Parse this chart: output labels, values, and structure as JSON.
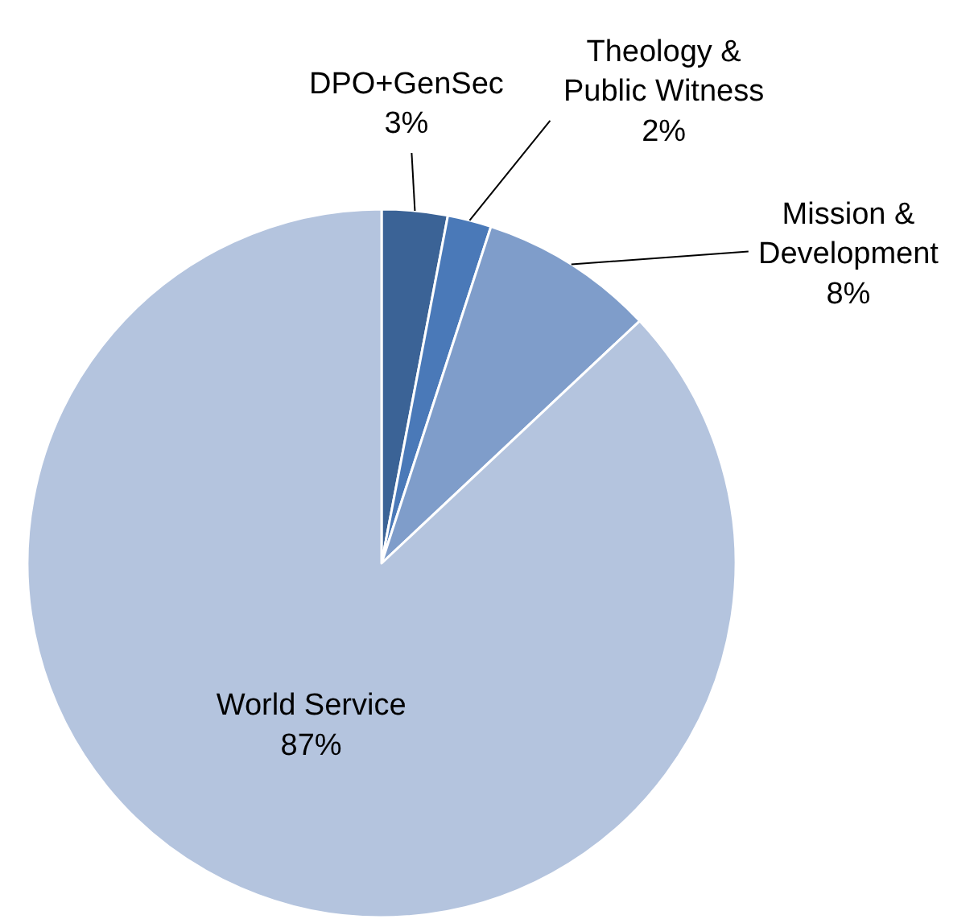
{
  "chart_data": {
    "type": "pie",
    "categories": [
      "DPO+GenSec",
      "Theology &\nPublic Witness",
      "Mission &\nDevelopment",
      "World Service"
    ],
    "values": [
      3,
      2,
      8,
      87
    ],
    "value_labels": [
      "3%",
      "2%",
      "8%",
      "87%"
    ],
    "colors": [
      "#3b6396",
      "#4a79b8",
      "#7f9dca",
      "#b4c4de"
    ],
    "legend": false
  }
}
